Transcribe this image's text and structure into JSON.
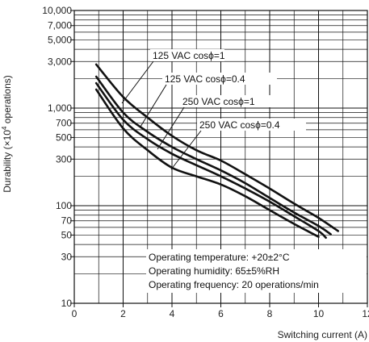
{
  "chart_data": {
    "type": "line",
    "xlabel": "Switching current (A)",
    "ylabel": "Durability (×10",
    "ylabel_sup": "4",
    "ylabel_tail": " operations)",
    "x_scale": "linear",
    "y_scale": "log",
    "xlim": [
      0,
      12
    ],
    "ylim": [
      10,
      10000
    ],
    "x_ticks": [
      "0",
      "2",
      "4",
      "6",
      "8",
      "10",
      "12"
    ],
    "y_ticks": [
      "10",
      "30",
      "50",
      "70",
      "100",
      "300",
      "500",
      "700",
      "1,000",
      "3,000",
      "5,000",
      "7,000",
      "10,000"
    ],
    "grid": true,
    "series": [
      {
        "name": "125 VAC cosϕ=1",
        "x": [
          0.9,
          2,
          3,
          4,
          5,
          6,
          7,
          8,
          9,
          10,
          10.8
        ],
        "y": [
          2800,
          1300,
          800,
          520,
          370,
          290,
          210,
          150,
          105,
          75,
          55
        ]
      },
      {
        "name": "125 VAC cosϕ=0.4",
        "x": [
          0.9,
          2,
          3,
          4,
          5,
          6,
          7,
          8,
          9,
          10,
          10.5
        ],
        "y": [
          2100,
          900,
          570,
          400,
          300,
          230,
          170,
          120,
          85,
          62,
          51
        ]
      },
      {
        "name": "250 VAC cosϕ=1",
        "x": [
          0.9,
          2,
          3,
          4,
          5,
          6,
          7,
          8,
          9,
          10,
          10.3
        ],
        "y": [
          1800,
          760,
          480,
          340,
          260,
          200,
          150,
          110,
          78,
          55,
          47
        ]
      },
      {
        "name": "250 VAC cosϕ=0.4",
        "x": [
          0.9,
          2,
          3,
          4,
          5,
          6,
          7,
          8,
          9,
          10
        ],
        "y": [
          1550,
          620,
          370,
          245,
          200,
          165,
          125,
          90,
          65,
          48
        ]
      }
    ],
    "annotations": [
      "Operating temperature: +20±2°C",
      "Operating humidity: 65±5%RH",
      "Operating frequency: 20 operations/min"
    ]
  }
}
